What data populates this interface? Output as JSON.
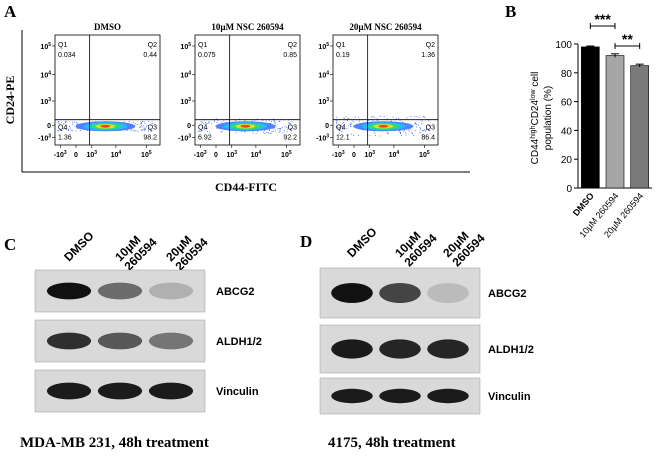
{
  "panel_a": {
    "label": "A",
    "y_axis_label": "CD24-PE",
    "x_axis_label": "CD44-FITC",
    "y_ticks": [
      {
        "base": "10",
        "exp": "5"
      },
      {
        "base": "10",
        "exp": "4"
      },
      {
        "base": "10",
        "exp": "3"
      },
      {
        "base": "0"
      },
      {
        "base": "-10",
        "exp": "3"
      }
    ],
    "x_ticks": [
      {
        "base": "-10",
        "exp": "3"
      },
      {
        "base": "0"
      },
      {
        "base": "10",
        "exp": "3"
      },
      {
        "base": "10",
        "exp": "4"
      },
      {
        "base": "10",
        "exp": "5"
      }
    ],
    "plots": [
      {
        "title": "DMSO",
        "q1": [
          "Q1",
          "0.034"
        ],
        "q2": [
          "Q2",
          "0.44"
        ],
        "q4": [
          "Q4",
          "1.36"
        ],
        "q3": [
          "Q3",
          "98.2"
        ]
      },
      {
        "title": "10µM NSC 260594",
        "q1": [
          "Q1",
          "0.075"
        ],
        "q2": [
          "Q2",
          "0.85"
        ],
        "q4": [
          "Q4",
          "6.92"
        ],
        "q3": [
          "Q3",
          "92.2"
        ]
      },
      {
        "title": "20µM NSC 260594",
        "q1": [
          "Q1",
          "0.19"
        ],
        "q2": [
          "Q2",
          "1.36"
        ],
        "q4": [
          "Q4",
          "12.1"
        ],
        "q3": [
          "Q3",
          "86.4"
        ]
      }
    ]
  },
  "chart_data": {
    "type": "bar",
    "panel_label": "B",
    "y_axis_label": {
      "line1": [
        "CD44",
        "high",
        "CD24",
        "low",
        " cell"
      ],
      "line2": "population (%)"
    },
    "categories": [
      "DMSO",
      "10µM 260594",
      "20µM 260594"
    ],
    "values": [
      98,
      92,
      85
    ],
    "errors": [
      0.6,
      1.2,
      1.0
    ],
    "colors": [
      "#000000",
      "#a6a6a6",
      "#7a7a7a"
    ],
    "ylim": [
      0,
      100
    ],
    "yticks": [
      0,
      20,
      40,
      60,
      80,
      100
    ],
    "significance_labels": [
      "***",
      "**"
    ]
  },
  "panel_c": {
    "label": "C",
    "lanes": [
      [
        "DMSO"
      ],
      [
        "10µM",
        "260594"
      ],
      [
        "20µM",
        "260594"
      ]
    ],
    "rows": [
      "ABCG2",
      "ALDH1/2",
      "Vinculin"
    ],
    "caption": "MDA-MB 231, 48h treatment"
  },
  "panel_d": {
    "label": "D",
    "lanes": [
      [
        "DMSO"
      ],
      [
        "10µM",
        "260594"
      ],
      [
        "20µM",
        "260594"
      ]
    ],
    "rows": [
      "ABCG2",
      "ALDH1/2",
      "Vinculin"
    ],
    "caption": "4175, 48h treatment"
  }
}
